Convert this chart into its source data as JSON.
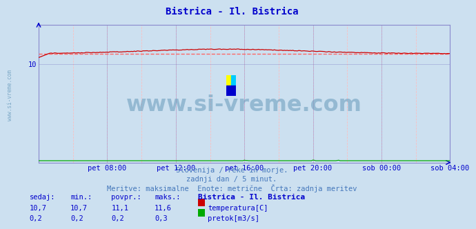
{
  "title": "Bistrica - Il. Bistrica",
  "title_color": "#0000cc",
  "fig_bg_color": "#cce0f0",
  "plot_bg_color": "#cce0f0",
  "watermark_text": "www.si-vreme.com",
  "watermark_color": "#6699bb",
  "tick_color": "#0000cc",
  "grid_color_major": "#8888cc",
  "grid_color_minor": "#ffbbbb",
  "xlim": [
    0,
    288
  ],
  "ylim": [
    0,
    14
  ],
  "yticks": [
    10
  ],
  "xtick_labels": [
    "pet 08:00",
    "pet 12:00",
    "pet 16:00",
    "pet 20:00",
    "sob 00:00",
    "sob 04:00"
  ],
  "xtick_positions": [
    48,
    96,
    144,
    192,
    240,
    288
  ],
  "temp_color": "#cc0000",
  "flow_color": "#00aa00",
  "dashed_color": "#ff6666",
  "footer_line1": "Slovenija / reke in morje.",
  "footer_line2": "zadnji dan / 5 minut.",
  "footer_line3": "Meritve: maksimalne  Enote: metrične  Črta: zadnja meritev",
  "footer_color": "#4477bb",
  "table_headers": [
    "sedaj:",
    "min.:",
    "povpr.:",
    "maks.:",
    "Bistrica - Il. Bistrica"
  ],
  "table_row1_vals": [
    "10,7",
    "10,7",
    "11,1",
    "11,6"
  ],
  "table_row1_label": "temperatura[C]",
  "table_row2_vals": [
    "0,2",
    "0,2",
    "0,2",
    "0,3"
  ],
  "table_row2_label": "pretok[m3/s]",
  "table_color": "#0000cc",
  "table_bold_color": "#000099",
  "sidebar_text": "www.si-vreme.com",
  "sidebar_color": "#6699bb",
  "temp_avg": 11.1,
  "temp_min": 10.7,
  "temp_max": 11.6,
  "flow_avg": 0.2,
  "flow_min": 0.2,
  "flow_max": 0.3,
  "logo_colors": [
    "#ffff00",
    "#00ffff",
    "#0000ff",
    "#0000aa"
  ]
}
